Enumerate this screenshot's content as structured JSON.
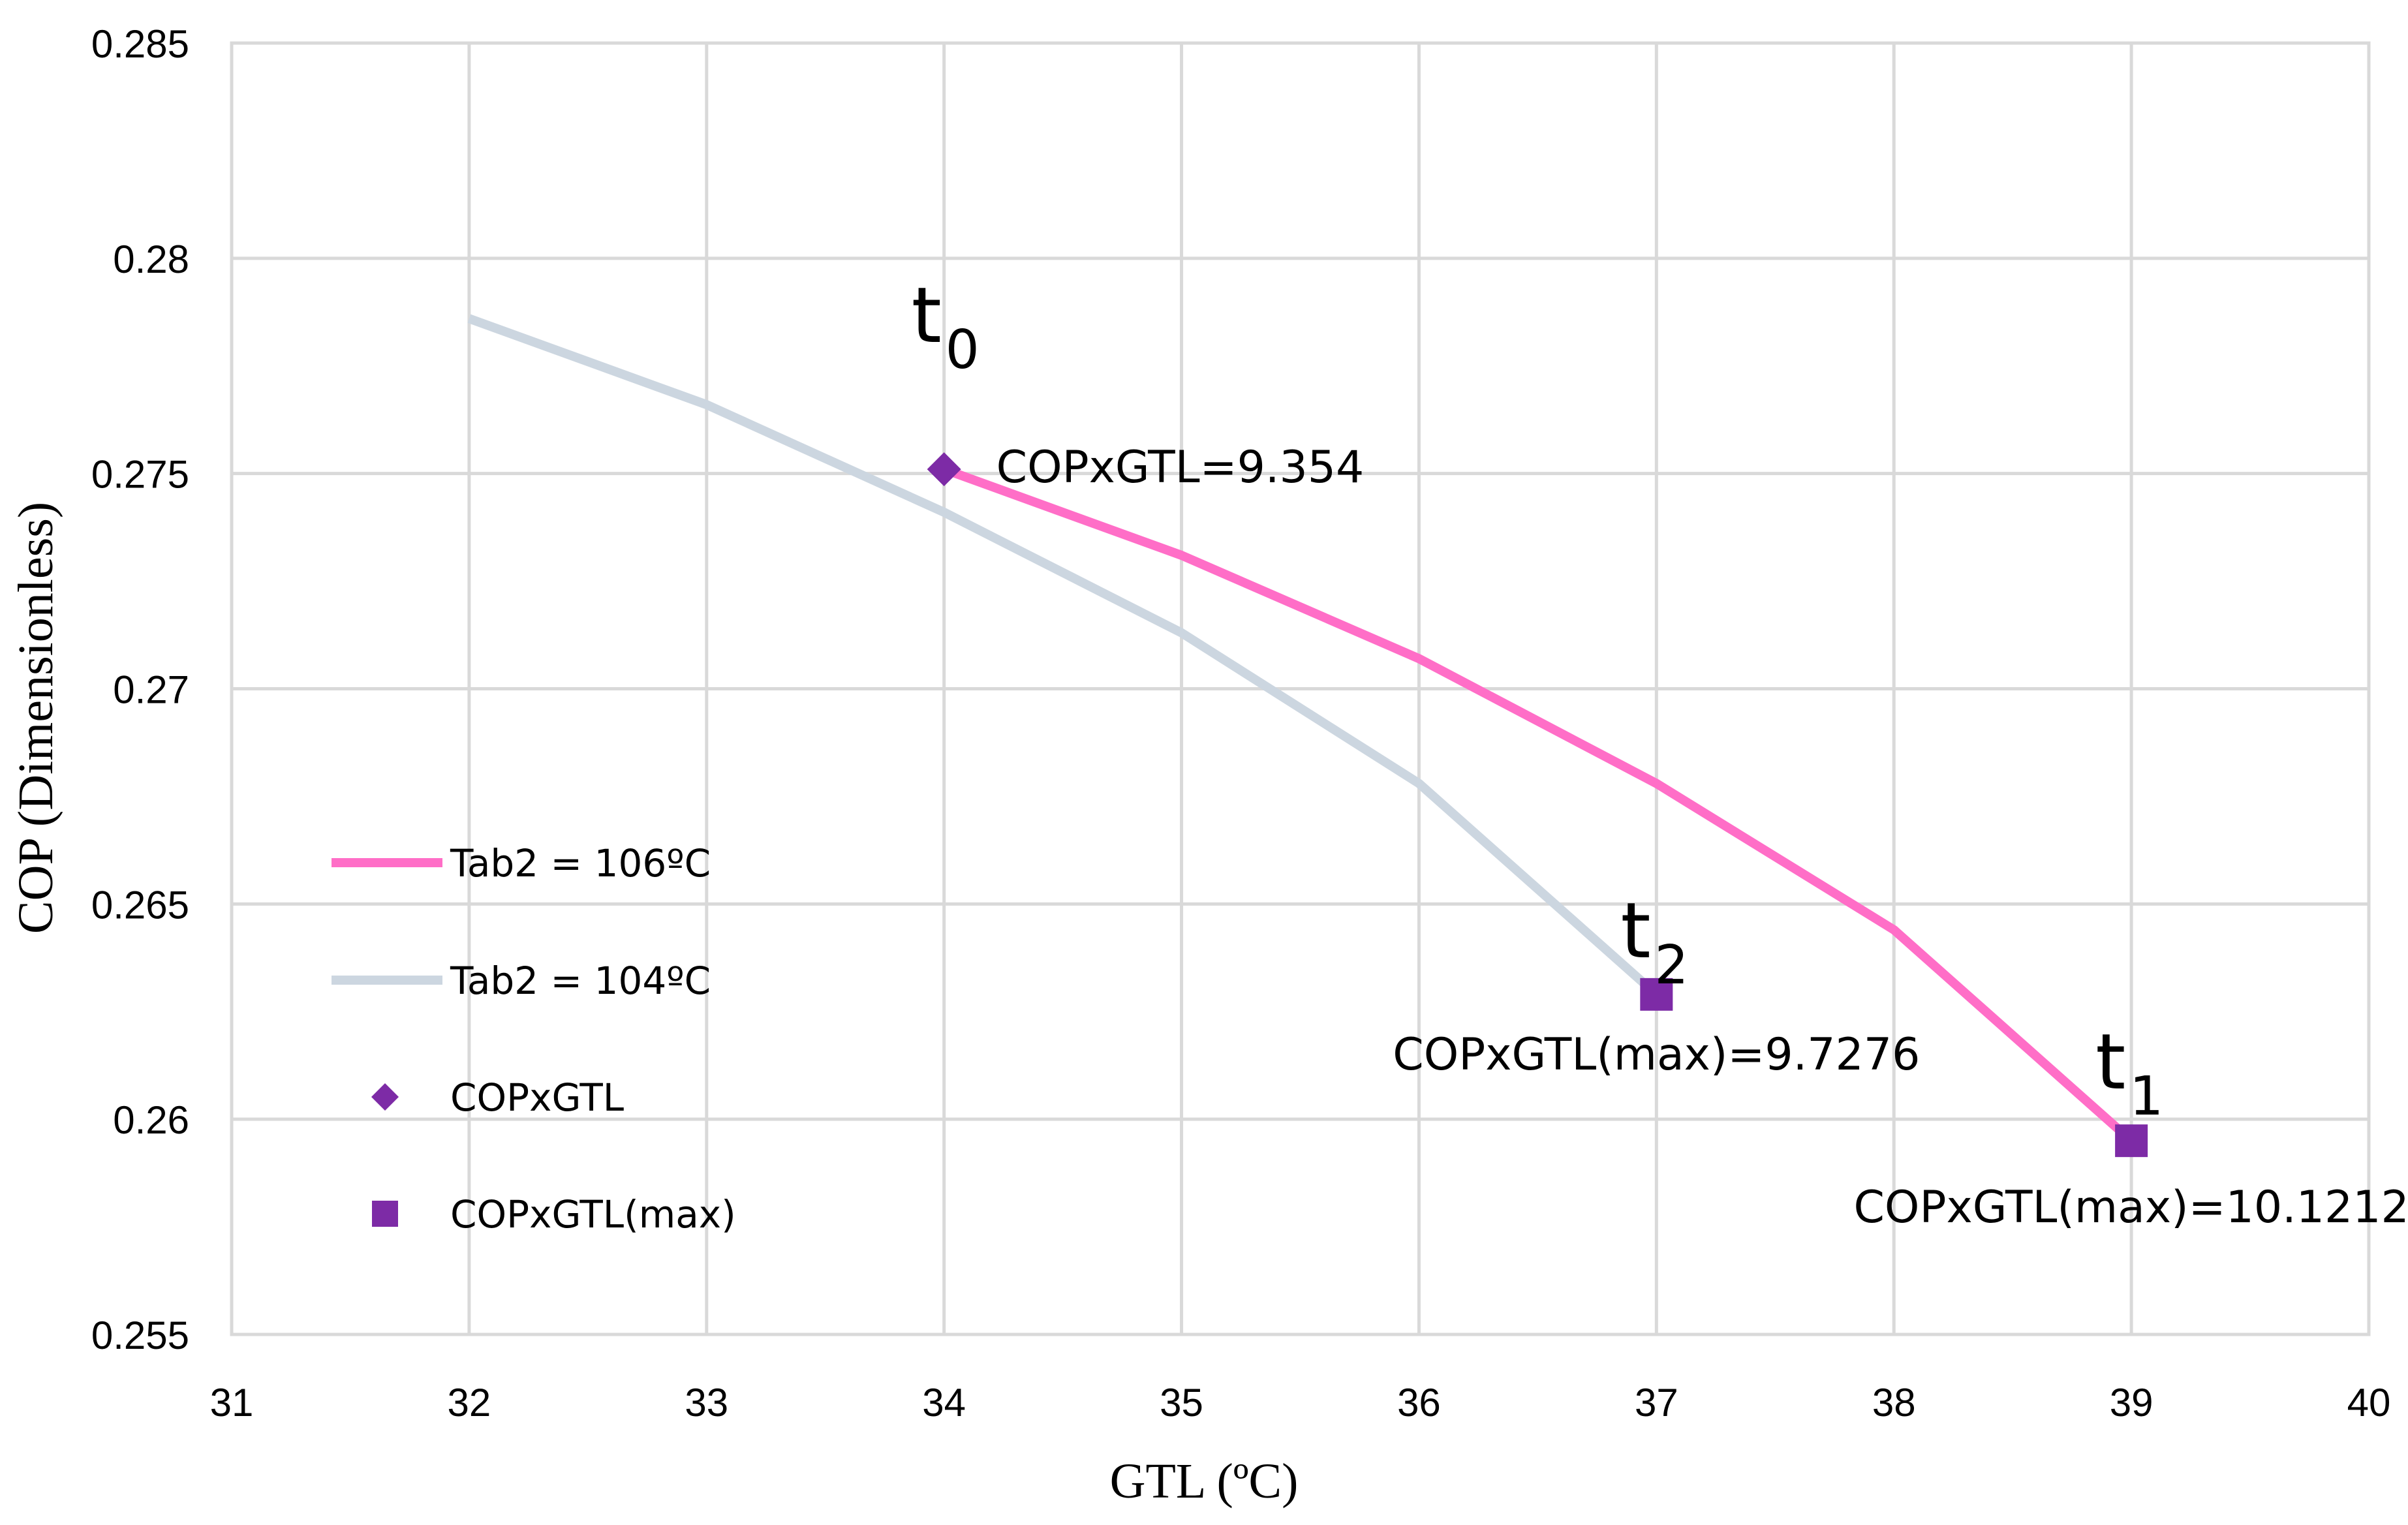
{
  "chart_data": {
    "type": "line",
    "title": "",
    "xlabel": "GTL (ºC)",
    "ylabel": "COP (Dimensionless)",
    "xlim": [
      31,
      40
    ],
    "ylim": [
      0.255,
      0.285
    ],
    "x_ticks": [
      31,
      32,
      33,
      34,
      35,
      36,
      37,
      38,
      39,
      40
    ],
    "y_ticks": [
      0.255,
      0.26,
      0.265,
      0.27,
      0.275,
      0.28,
      0.285
    ],
    "x_tick_labels": [
      "31",
      "32",
      "33",
      "34",
      "35",
      "36",
      "37",
      "38",
      "39",
      "40"
    ],
    "y_tick_labels": [
      "0.255",
      "0.26",
      "0.265",
      "0.27",
      "0.275",
      "0.28",
      "0.285"
    ],
    "grid": true,
    "legend_position": "left-center",
    "series": [
      {
        "name": "Tab2 = 106ºC",
        "kind": "line",
        "color": "#ff6ec7",
        "x": [
          34,
          35,
          36,
          37,
          38,
          39
        ],
        "y": [
          0.2751,
          0.2731,
          0.2707,
          0.2678,
          0.2644,
          0.2595
        ]
      },
      {
        "name": "Tab2 = 104ºC",
        "kind": "line",
        "color": "#ccd6e0",
        "x": [
          32,
          33,
          34,
          35,
          36,
          37
        ],
        "y": [
          0.2786,
          0.2766,
          0.2741,
          0.2713,
          0.2678,
          0.2629
        ]
      },
      {
        "name": "COPxGTL",
        "kind": "marker",
        "marker": "diamond",
        "color": "#7d2ba6",
        "x": [
          34
        ],
        "y": [
          0.2751
        ]
      },
      {
        "name": "COPxGTL(max)",
        "kind": "marker",
        "marker": "square",
        "color": "#7d2ba6",
        "x": [
          37,
          39
        ],
        "y": [
          0.2629,
          0.2595
        ]
      }
    ],
    "annotations": [
      {
        "text": "COPxGTL=9.354",
        "x": 34,
        "y": 0.2751
      },
      {
        "text": "COPxGTL(max)=9.7276",
        "x": 37,
        "y": 0.2629
      },
      {
        "text": "COPxGTL(max)=10.1212",
        "x": 39,
        "y": 0.2595
      }
    ],
    "point_labels": [
      {
        "base": "t",
        "sub": "0",
        "x": 34,
        "y": 0.2751
      },
      {
        "base": "t",
        "sub": "2",
        "x": 37,
        "y": 0.2629
      },
      {
        "base": "t",
        "sub": "1",
        "x": 39,
        "y": 0.2595
      }
    ]
  }
}
